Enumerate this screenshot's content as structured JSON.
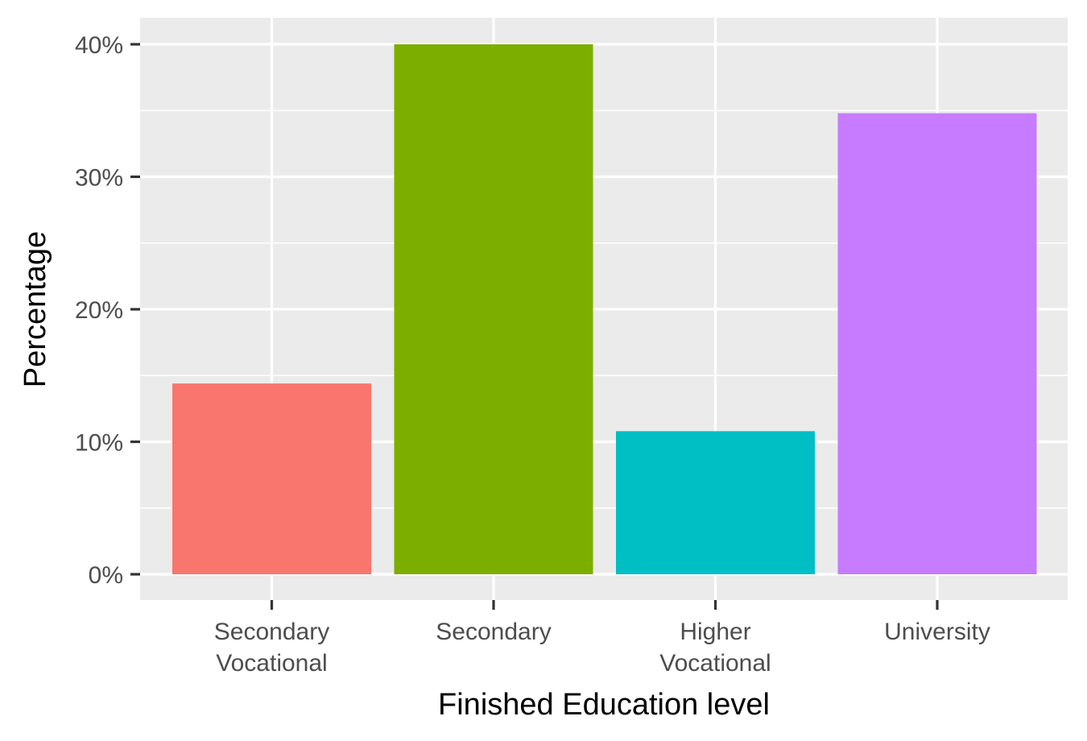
{
  "chart_data": {
    "type": "bar",
    "categories": [
      [
        "Secondary",
        "Vocational"
      ],
      [
        "Secondary"
      ],
      [
        "Higher",
        "Vocational"
      ],
      [
        "University"
      ]
    ],
    "values": [
      14.4,
      40.0,
      10.8,
      34.8
    ],
    "colors": [
      "#F8766D",
      "#7CAE00",
      "#00BFC4",
      "#C77CFF"
    ],
    "xlabel": "Finished Education level",
    "ylabel": "Percentage",
    "ylim": [
      0,
      42
    ],
    "yticks": [
      0,
      10,
      20,
      30,
      40
    ],
    "ytick_labels": [
      "0%",
      "10%",
      "20%",
      "30%",
      "40%"
    ],
    "grid": true,
    "panel_background": "#EBEBEB",
    "grid_color": "#FFFFFF",
    "legend": "none"
  }
}
